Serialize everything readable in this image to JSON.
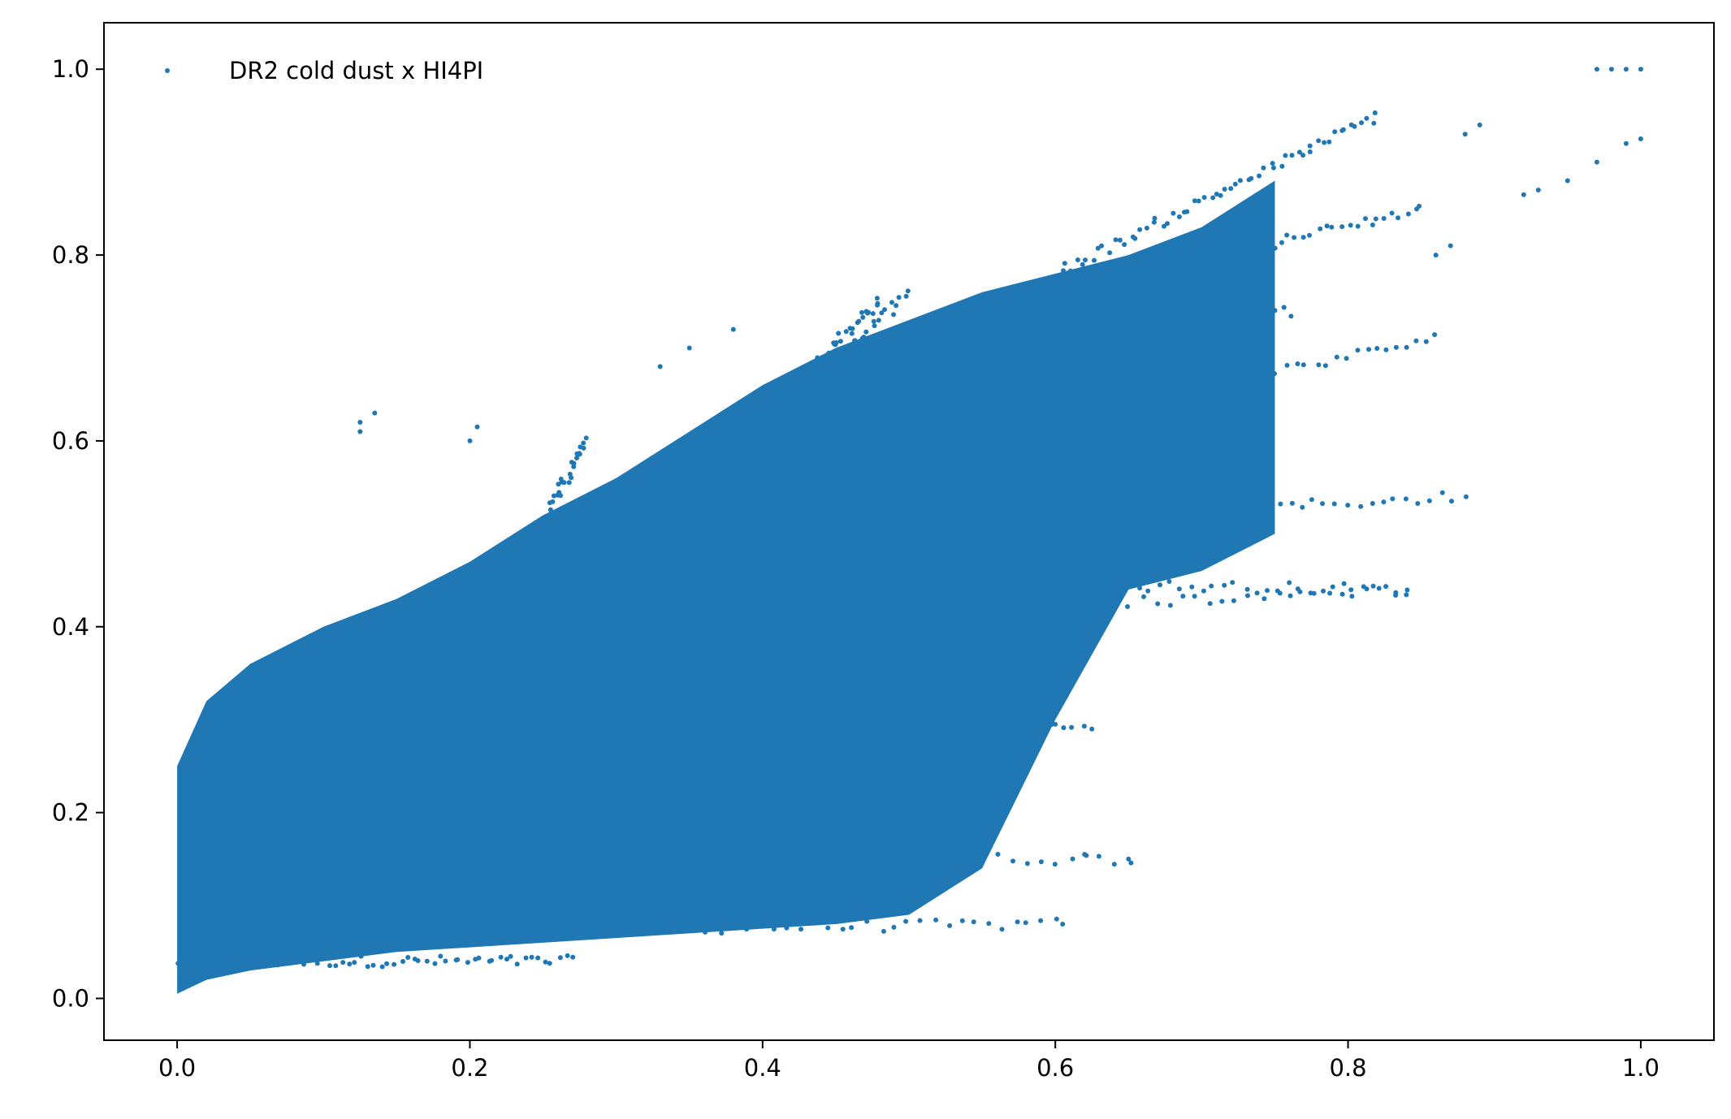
{
  "chart_data": {
    "type": "scatter",
    "title": "",
    "xlabel": "",
    "ylabel": "",
    "xlim": [
      -0.05,
      1.05
    ],
    "ylim": [
      -0.045,
      1.05
    ],
    "xticks": [
      0.0,
      0.2,
      0.4,
      0.6,
      0.8,
      1.0
    ],
    "yticks": [
      0.0,
      0.2,
      0.4,
      0.6,
      0.8,
      1.0
    ],
    "xtick_labels": [
      "0.0",
      "0.2",
      "0.4",
      "0.6",
      "0.8",
      "1.0"
    ],
    "ytick_labels": [
      "0.0",
      "0.2",
      "0.4",
      "0.6",
      "0.8",
      "1.0"
    ],
    "grid": false,
    "legend_placement": "upper-left",
    "series": [
      {
        "name": "DR2 cold dust x HI4PI",
        "color": "#1f77b4",
        "marker": "dot",
        "density_envelope": [
          {
            "x": 0.0,
            "ymin": 0.005,
            "ymax": 0.25
          },
          {
            "x": 0.02,
            "ymin": 0.02,
            "ymax": 0.32
          },
          {
            "x": 0.05,
            "ymin": 0.03,
            "ymax": 0.36
          },
          {
            "x": 0.1,
            "ymin": 0.04,
            "ymax": 0.4
          },
          {
            "x": 0.15,
            "ymin": 0.05,
            "ymax": 0.43
          },
          {
            "x": 0.2,
            "ymin": 0.055,
            "ymax": 0.47
          },
          {
            "x": 0.25,
            "ymin": 0.06,
            "ymax": 0.52
          },
          {
            "x": 0.3,
            "ymin": 0.065,
            "ymax": 0.56
          },
          {
            "x": 0.35,
            "ymin": 0.07,
            "ymax": 0.61
          },
          {
            "x": 0.4,
            "ymin": 0.075,
            "ymax": 0.66
          },
          {
            "x": 0.45,
            "ymin": 0.08,
            "ymax": 0.7
          },
          {
            "x": 0.5,
            "ymin": 0.09,
            "ymax": 0.73
          },
          {
            "x": 0.55,
            "ymin": 0.14,
            "ymax": 0.76
          },
          {
            "x": 0.6,
            "ymin": 0.3,
            "ymax": 0.78
          },
          {
            "x": 0.65,
            "ymin": 0.44,
            "ymax": 0.8
          },
          {
            "x": 0.7,
            "ymin": 0.46,
            "ymax": 0.83
          },
          {
            "x": 0.75,
            "ymin": 0.5,
            "ymax": 0.88
          }
        ],
        "streaks": [
          {
            "x0": 0.0,
            "y0": 0.04,
            "x1": 0.27,
            "y1": 0.04
          },
          {
            "x0": 0.05,
            "y0": 0.07,
            "x1": 0.6,
            "y1": 0.08
          },
          {
            "x0": 0.05,
            "y0": 0.12,
            "x1": 0.48,
            "y1": 0.15
          },
          {
            "x0": 0.05,
            "y0": 0.15,
            "x1": 0.65,
            "y1": 0.15
          },
          {
            "x0": 0.05,
            "y0": 0.18,
            "x1": 0.37,
            "y1": 0.18
          },
          {
            "x0": 0.1,
            "y0": 0.23,
            "x1": 0.43,
            "y1": 0.25
          },
          {
            "x0": 0.15,
            "y0": 0.28,
            "x1": 0.62,
            "y1": 0.29
          },
          {
            "x0": 0.2,
            "y0": 0.33,
            "x1": 0.6,
            "y1": 0.34
          },
          {
            "x0": 0.3,
            "y0": 0.4,
            "x1": 0.84,
            "y1": 0.44
          },
          {
            "x0": 0.4,
            "y0": 0.45,
            "x1": 0.84,
            "y1": 0.44
          },
          {
            "x0": 0.4,
            "y0": 0.5,
            "x1": 0.88,
            "y1": 0.54
          },
          {
            "x0": 0.45,
            "y0": 0.58,
            "x1": 0.86,
            "y1": 0.71
          },
          {
            "x0": 0.5,
            "y0": 0.68,
            "x1": 0.76,
            "y1": 0.74
          },
          {
            "x0": 0.55,
            "y0": 0.74,
            "x1": 0.85,
            "y1": 0.85
          },
          {
            "x0": 0.6,
            "y0": 0.78,
            "x1": 0.82,
            "y1": 0.95
          },
          {
            "x0": 0.35,
            "y0": 0.53,
            "x1": 0.5,
            "y1": 0.76
          },
          {
            "x0": 0.22,
            "y0": 0.43,
            "x1": 0.28,
            "y1": 0.6
          },
          {
            "x0": 0.03,
            "y0": 0.2,
            "x1": 0.1,
            "y1": 0.38
          },
          {
            "x0": 0.38,
            "y0": 0.6,
            "x1": 0.48,
            "y1": 0.75
          }
        ],
        "outliers": [
          {
            "x": 0.125,
            "y": 0.61
          },
          {
            "x": 0.125,
            "y": 0.62
          },
          {
            "x": 0.135,
            "y": 0.63
          },
          {
            "x": 0.2,
            "y": 0.6
          },
          {
            "x": 0.205,
            "y": 0.615
          },
          {
            "x": 0.33,
            "y": 0.68
          },
          {
            "x": 0.35,
            "y": 0.7
          },
          {
            "x": 0.38,
            "y": 0.72
          },
          {
            "x": 0.6,
            "y": 0.295
          },
          {
            "x": 0.625,
            "y": 0.29
          },
          {
            "x": 0.605,
            "y": 0.08
          },
          {
            "x": 0.62,
            "y": 0.155
          },
          {
            "x": 0.65,
            "y": 0.15
          },
          {
            "x": 0.86,
            "y": 0.8
          },
          {
            "x": 0.87,
            "y": 0.81
          },
          {
            "x": 0.88,
            "y": 0.93
          },
          {
            "x": 0.89,
            "y": 0.94
          },
          {
            "x": 0.92,
            "y": 0.865
          },
          {
            "x": 0.93,
            "y": 0.87
          },
          {
            "x": 0.95,
            "y": 0.88
          },
          {
            "x": 0.97,
            "y": 0.9
          },
          {
            "x": 0.99,
            "y": 0.92
          },
          {
            "x": 1.0,
            "y": 0.925
          },
          {
            "x": 0.97,
            "y": 1.0
          },
          {
            "x": 0.98,
            "y": 1.0
          },
          {
            "x": 0.99,
            "y": 1.0
          },
          {
            "x": 1.0,
            "y": 1.0
          }
        ]
      }
    ]
  }
}
